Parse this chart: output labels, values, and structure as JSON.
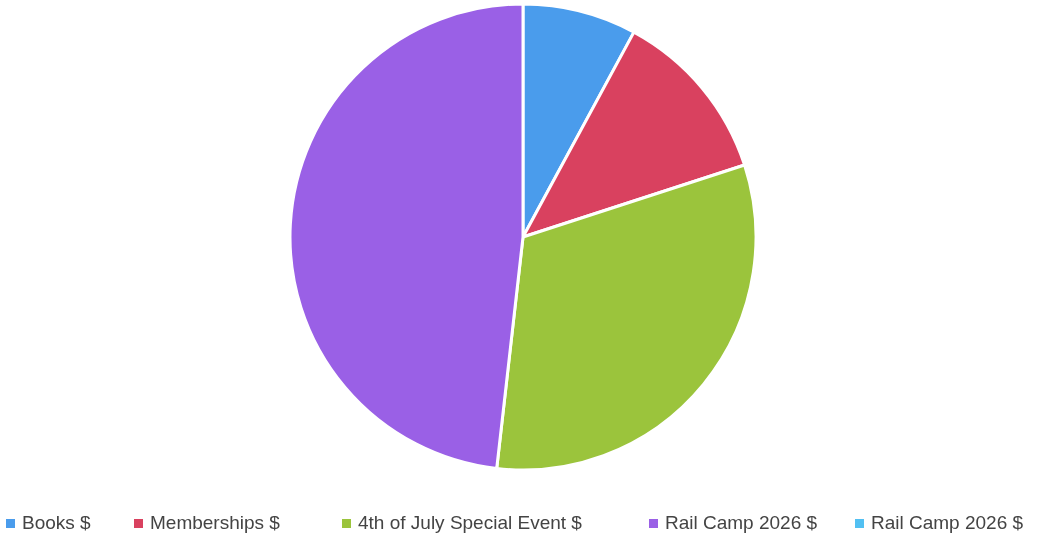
{
  "chart_data": {
    "type": "pie",
    "categories": [
      "Books $",
      "Memberships $",
      "4th of July Special Event $",
      "Rail Camp 2026 $",
      "Rail Camp 2026 $"
    ],
    "values": [
      7.9,
      12.1,
      31.8,
      48.2,
      0
    ],
    "colors": [
      "#4a9cec",
      "#d9415f",
      "#9bc43c",
      "#9a60e6",
      "#52c0f2"
    ],
    "legend": "bottom"
  }
}
